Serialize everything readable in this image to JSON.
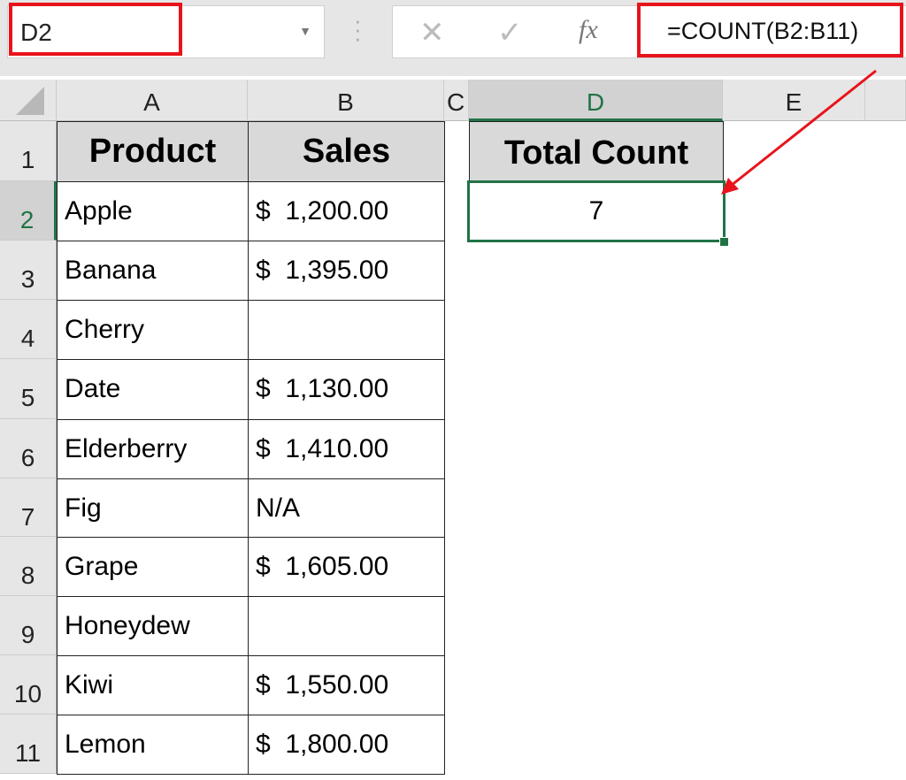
{
  "formula_bar": {
    "name_box": "D2",
    "formula": "=COUNT(B2:B11)",
    "cancel_icon": "x-icon",
    "enter_icon": "check-icon",
    "fx_label": "fx"
  },
  "columns": [
    "A",
    "B",
    "C",
    "D",
    "E"
  ],
  "rows": [
    "1",
    "2",
    "3",
    "4",
    "5",
    "6",
    "7",
    "8",
    "9",
    "10",
    "11"
  ],
  "table": {
    "headers": [
      "Product",
      "Sales"
    ],
    "data": [
      [
        "Apple",
        "$  1,200.00"
      ],
      [
        "Banana",
        "$  1,395.00"
      ],
      [
        "Cherry",
        ""
      ],
      [
        "Date",
        "$  1,130.00"
      ],
      [
        "Elderberry",
        "$  1,410.00"
      ],
      [
        "Fig",
        "N/A"
      ],
      [
        "Grape",
        "$  1,605.00"
      ],
      [
        "Honeydew",
        ""
      ],
      [
        "Kiwi",
        "$  1,550.00"
      ],
      [
        "Lemon",
        "$  1,800.00"
      ]
    ]
  },
  "result": {
    "header": "Total Count",
    "value": "7"
  },
  "colors": {
    "highlight": "#e8141b",
    "selection": "#217346",
    "header_fill": "#d9d9d9"
  }
}
